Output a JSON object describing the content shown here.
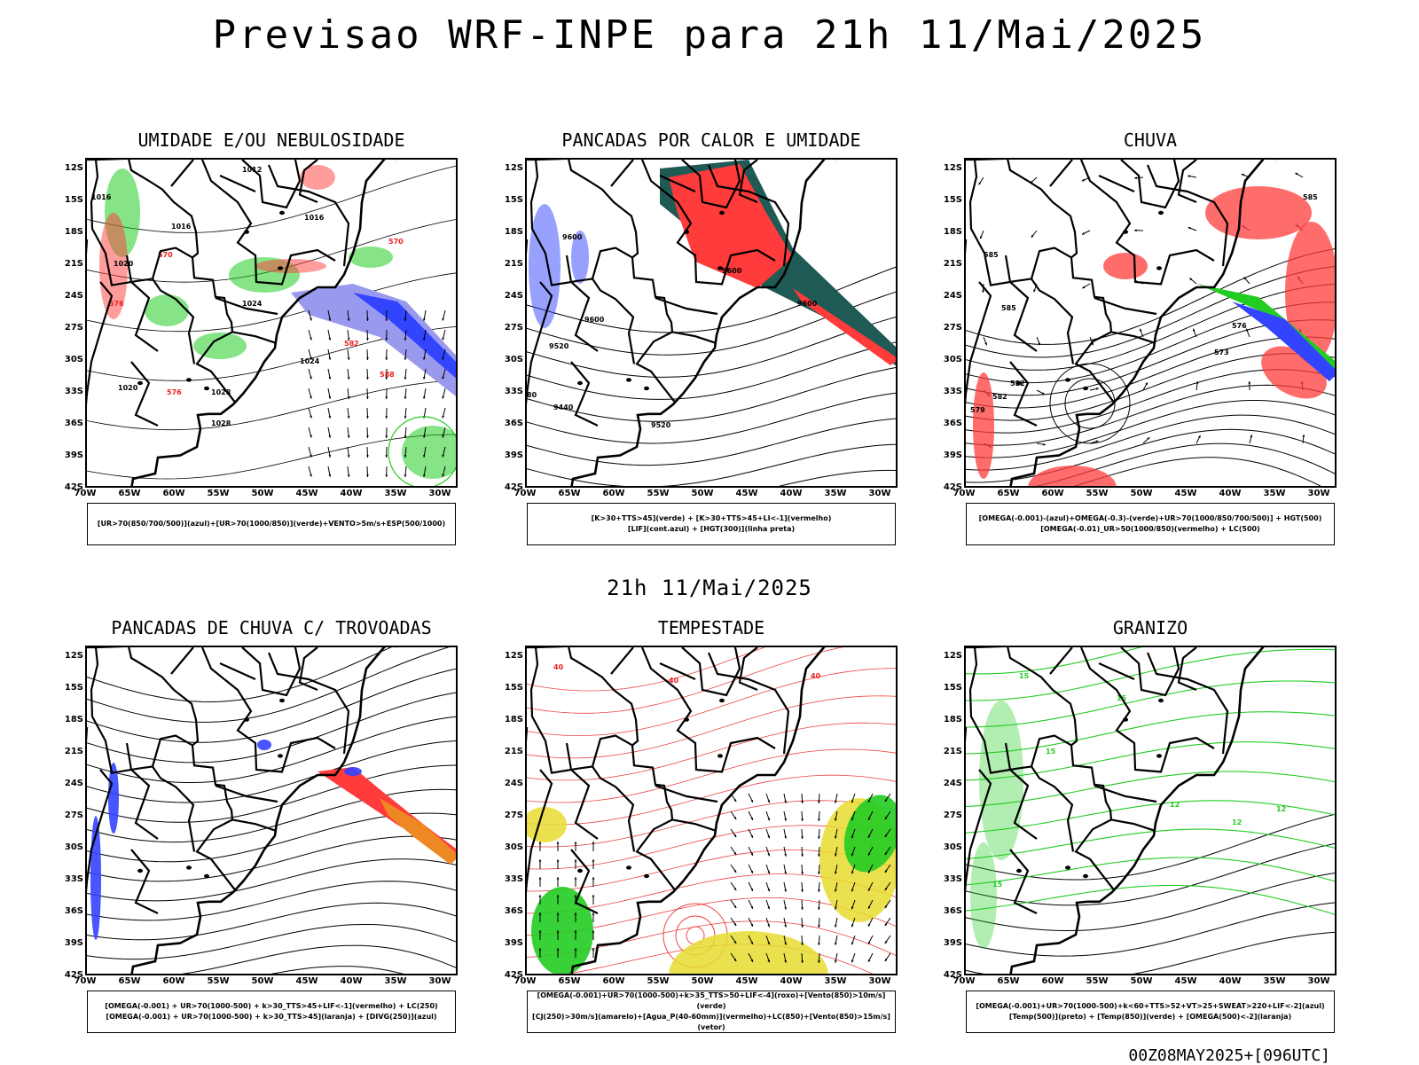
{
  "title": "Previsao WRF-INPE  para 21h 11/Mai/2025",
  "mid_title": "21h 11/Mai/2025",
  "footer": "00Z08MAY2025+[096UTC]",
  "lat_labels": [
    "12S",
    "15S",
    "18S",
    "21S",
    "24S",
    "27S",
    "30S",
    "33S",
    "36S",
    "39S",
    "42S"
  ],
  "lon_labels": [
    "70W",
    "65W",
    "60W",
    "55W",
    "50W",
    "45W",
    "40W",
    "35W",
    "30W"
  ],
  "panels": [
    {
      "title": "UMIDADE E/OU NEBULOSIDADE",
      "legend": [
        "[UR>70(850/700/500)](azul)+[UR>70(1000/850)](verde)+VENTO>5m/s+ESP(500/1000)"
      ],
      "contour_labels": [
        "1012",
        "1016",
        "1016",
        "1016",
        "1020",
        "1020",
        "1024",
        "1024",
        "1028",
        "1028",
        "570",
        "570",
        "576",
        "576",
        "582",
        "588"
      ]
    },
    {
      "title": "PANCADAS POR CALOR E UMIDADE",
      "legend": [
        "[K>30+TTS>45](verde) + [K>30+TTS>45+LI<-1](vermelho)",
        "[LIF](cont.azul) + [HGT(300)](linha preta)"
      ],
      "contour_labels": [
        "9600",
        "9600",
        "9600",
        "9600",
        "9520",
        "9520",
        "9440",
        "80"
      ]
    },
    {
      "title": "CHUVA",
      "legend": [
        "[OMEGA(-0.001)-(azul)+OMEGA(-0.3)-(verde)+UR>70(1000/850/700/500)] + HGT(500)",
        "[OMEGA(-0.01)_UR>50(1000/850)(vermelho) + LC(500)"
      ],
      "contour_labels": [
        "585",
        "585",
        "585",
        "576",
        "573",
        "582",
        "579",
        "582"
      ]
    },
    {
      "title": "PANCADAS DE CHUVA C/ TROVOADAS",
      "legend": [
        "[OMEGA(-0.001) + UR>70(1000-500) + k>30_TTS>45+LIF<-1](vermelho) + LC(250)",
        "[OMEGA(-0.001) + UR>70(1000-500) + k>30_TTS>45](laranja) + [DIVG(250)](azul)"
      ],
      "contour_labels": []
    },
    {
      "title": "TEMPESTADE",
      "legend": [
        "[OMEGA(-0.001)+UR>70(1000-500)+k>35_TTS>50+LIF<-4](roxo)+[Vento(850)>10m/s](verde)",
        "[CJ(250)>30m/s](amarelo)+[Agua_P(40-60mm)](vermelho)+LC(850)+[Vento(850)>15m/s](vetor)"
      ],
      "contour_labels": [
        "40",
        "40",
        "40"
      ]
    },
    {
      "title": "GRANIZO",
      "legend": [
        "[OMEGA(-0.001)+UR>70(1000-500)+k<60+TTS>52+VT>25+SWEAT>220+LIF<-2](azul)",
        "[Temp(500)](preto) + [Temp(850)](verde) + [OMEGA(500)<-2](laranja)"
      ],
      "contour_labels": [
        "15",
        "15",
        "15",
        "15",
        "12",
        "12",
        "12"
      ]
    }
  ],
  "colors": {
    "frame": "#000000",
    "red": "#ff3b3b",
    "green": "#22cc22",
    "blue": "#3344ff",
    "lavender": "#9999ee",
    "darkteal": "#1f5a55",
    "orange": "#ee8822",
    "yellow": "#e8dc30"
  }
}
